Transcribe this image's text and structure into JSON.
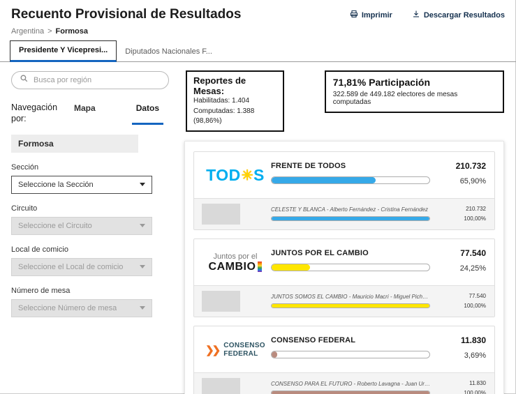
{
  "header": {
    "title": "Recuento Provisional de Resultados",
    "actions": [
      {
        "label": "Imprimir",
        "icon": "printer-icon"
      },
      {
        "label": "Descargar Resultados",
        "icon": "download-icon"
      }
    ]
  },
  "breadcrumb": {
    "root": "Argentina",
    "separator": ">",
    "current": "Formosa"
  },
  "tabs": [
    {
      "label": "Presidente Y Vicepresi...",
      "active": true
    },
    {
      "label": "Diputados Nacionales F...",
      "active": false
    }
  ],
  "sidebar": {
    "search": {
      "placeholder": "Busca por región"
    },
    "nav_label": "Navegación por:",
    "view_tabs": [
      {
        "label": "Mapa",
        "active": false
      },
      {
        "label": "Datos",
        "active": true
      }
    ],
    "region": "Formosa",
    "filters": [
      {
        "label": "Sección",
        "value": "Seleccione la Sección",
        "enabled": true
      },
      {
        "label": "Circuito",
        "value": "Seleccione el Circuito",
        "enabled": false
      },
      {
        "label": "Local de comicio",
        "value": "Seleccione el Local de comicio",
        "enabled": false
      },
      {
        "label": "Número de mesa",
        "value": "Seleccione Número de mesa",
        "enabled": false
      }
    ]
  },
  "summary": {
    "mesas": {
      "title": "Reportes de Mesas:",
      "lines": [
        "Habilitadas: 1.404",
        "Computadas: 1.388 (98,86%)"
      ]
    },
    "participacion": {
      "title": "71,81% Participación",
      "subtitle": "322.589 de 449.182 electores de mesas computadas"
    }
  },
  "icons": {
    "print": "printer-icon",
    "download": "download-icon",
    "search": "search-icon",
    "select_caret": "caret-down-icon"
  },
  "results": [
    {
      "party": "FRENTE DE TODOS",
      "votes": "210.732",
      "percent": "65,90%",
      "bar_value": 65.9,
      "color": "#36a9e8",
      "logo": {
        "style": "todos",
        "pre": "TOD",
        "sun": "✳",
        "post": "S"
      },
      "lists": [
        {
          "name": "CELESTE Y BLANCA - Alberto Fernández - Cristina Fernández",
          "votes": "210.732",
          "percent": "100,00%",
          "bar_value": 100,
          "color": "#36a9e8"
        }
      ]
    },
    {
      "party": "JUNTOS POR EL CAMBIO",
      "votes": "77.540",
      "percent": "24,25%",
      "bar_value": 24.25,
      "color": "#ffe600",
      "logo": {
        "style": "juntos",
        "top": "Juntos por el",
        "bottom": "CAMBIO"
      },
      "lists": [
        {
          "name": "JUNTOS SOMOS EL CAMBIO - Mauricio Macri - Miguel Pichetto",
          "votes": "77.540",
          "percent": "100,00%",
          "bar_value": 100,
          "color": "#ffe600"
        }
      ]
    },
    {
      "party": "CONSENSO FEDERAL",
      "votes": "11.830",
      "percent": "3,69%",
      "bar_value": 3.69,
      "color": "#b98b7e",
      "logo": {
        "style": "consenso",
        "chevrons": "❯❯",
        "line1": "CONSENSO",
        "line2": "FEDERAL"
      },
      "lists": [
        {
          "name": "CONSENSO PARA EL FUTURO - Roberto Lavagna - Juan Urtubey",
          "votes": "11.830",
          "percent": "100,00%",
          "bar_value": 100,
          "color": "#b98b7e"
        }
      ]
    }
  ]
}
